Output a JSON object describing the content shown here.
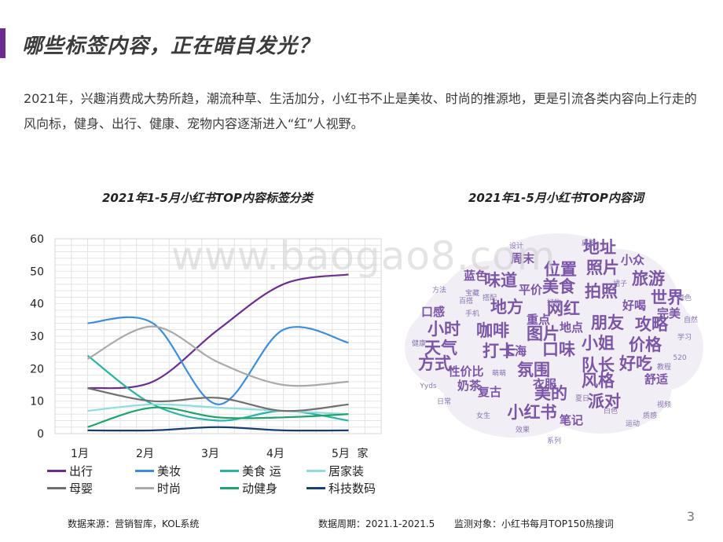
{
  "page": {
    "title": "哪些标签内容，正在暗自发光？",
    "description": "2021年，兴趣消费成大势所趋，潮流种草、生活加分，小红书不止是美妆、时尚的推源地，更是引流各类内容向上行走的风向标，健身、出行、健康、宠物内容逐渐进入“红”人视野。",
    "accent_color": "#6b2d8f",
    "watermark": "www.baogao8.com",
    "page_number": "3"
  },
  "footer": {
    "source": "数据来源：营销智库，KOL系统",
    "period": "数据周期：2021.1-2021.5",
    "monitor": "监测对象：小红书每月TOP150热搜词"
  },
  "chart_data": [
    {
      "type": "line",
      "title": "2021年1-5月小红书TOP内容标签分类",
      "categories": [
        "1月",
        "2月",
        "3月",
        "4月",
        "5月"
      ],
      "ylim": [
        0,
        60
      ],
      "yticks": [
        0,
        10,
        20,
        30,
        40,
        50,
        60
      ],
      "grid": true,
      "legend_position": "bottom",
      "series": [
        {
          "name": "出行",
          "color": "#6b2d8f",
          "values": [
            14,
            16,
            32,
            46,
            49
          ]
        },
        {
          "name": "美妆",
          "color": "#3a8ee0",
          "values": [
            34,
            34,
            9,
            32,
            28
          ]
        },
        {
          "name": "美食",
          "color": "#2bb3a3",
          "values": [
            24,
            9,
            4,
            7,
            4
          ]
        },
        {
          "name": "居家装",
          "color": "#8fdcdc",
          "values": [
            7,
            9,
            8,
            7,
            6
          ]
        },
        {
          "name": "母婴",
          "color": "#6f6f6f",
          "values": [
            14,
            10,
            11,
            7,
            9
          ]
        },
        {
          "name": "时尚",
          "color": "#a9a9a9",
          "values": [
            23,
            33,
            22,
            15,
            16
          ]
        },
        {
          "name": "运动健身",
          "color": "#1fa26b",
          "values": [
            2,
            8,
            5,
            5,
            6
          ]
        },
        {
          "name": "科技数码",
          "color": "#163f73",
          "values": [
            1,
            1,
            2,
            1,
            1
          ]
        }
      ],
      "xtick_extra": "家",
      "legend_rows": [
        [
          {
            "label": "出行",
            "color": "#6b2d8f"
          },
          {
            "label": "美妆",
            "color": "#3a8ee0"
          },
          {
            "label": "美食 运",
            "color": "#2bb3a3"
          },
          {
            "label": "居家装",
            "color": "#8fdcdc"
          }
        ],
        [
          {
            "label": "母婴",
            "color": "#6f6f6f"
          },
          {
            "label": "时尚",
            "color": "#a9a9a9"
          },
          {
            "label": "动健身",
            "color": "#1fa26b"
          },
          {
            "label": "科技数码",
            "color": "#163f73"
          }
        ]
      ]
    },
    {
      "type": "wordcloud",
      "title": "2021年1-5月小红书TOP内容词",
      "cloud_color": "#7b56a8",
      "words": [
        {
          "text": "地址",
          "weight": 3
        },
        {
          "text": "周末",
          "weight": 2
        },
        {
          "text": "位置",
          "weight": 3
        },
        {
          "text": "照片",
          "weight": 3
        },
        {
          "text": "味道",
          "weight": 3
        },
        {
          "text": "美食",
          "weight": 3
        },
        {
          "text": "旅游",
          "weight": 3
        },
        {
          "text": "宝藏",
          "weight": 1
        },
        {
          "text": "拍照",
          "weight": 3
        },
        {
          "text": "世界",
          "weight": 3
        },
        {
          "text": "地方",
          "weight": 3
        },
        {
          "text": "网红",
          "weight": 3
        },
        {
          "text": "好喝",
          "weight": 2
        },
        {
          "text": "地点",
          "weight": 2
        },
        {
          "text": "朋友",
          "weight": 3
        },
        {
          "text": "攻略",
          "weight": 3
        },
        {
          "text": "小时",
          "weight": 3
        },
        {
          "text": "咖啡",
          "weight": 3
        },
        {
          "text": "图片",
          "weight": 3
        },
        {
          "text": "小姐",
          "weight": 3
        },
        {
          "text": "价格",
          "weight": 3
        },
        {
          "text": "天气",
          "weight": 3
        },
        {
          "text": "打卡",
          "weight": 3
        },
        {
          "text": "口味",
          "weight": 3
        },
        {
          "text": "性价比",
          "weight": 2
        },
        {
          "text": "氛围",
          "weight": 3
        },
        {
          "text": "队长",
          "weight": 3
        },
        {
          "text": "好吃",
          "weight": 3
        },
        {
          "text": "舒适",
          "weight": 2
        },
        {
          "text": "复古",
          "weight": 2
        },
        {
          "text": "美的",
          "weight": 3
        },
        {
          "text": "风格",
          "weight": 3
        },
        {
          "text": "派对",
          "weight": 3
        },
        {
          "text": "笔记",
          "weight": 2
        },
        {
          "text": "小红书",
          "weight": 3
        },
        {
          "text": "方式",
          "weight": 3
        },
        {
          "text": "奶茶",
          "weight": 2
        },
        {
          "text": "衣服",
          "weight": 2
        },
        {
          "text": "口感",
          "weight": 2
        },
        {
          "text": "平价",
          "weight": 2
        },
        {
          "text": "蓝色",
          "weight": 2
        },
        {
          "text": "上海",
          "weight": 2
        },
        {
          "text": "重点",
          "weight": 2
        },
        {
          "text": "小众",
          "weight": 2
        },
        {
          "text": "完美",
          "weight": 2
        },
        {
          "text": "颜色",
          "weight": 1
        },
        {
          "text": "方法",
          "weight": 1
        },
        {
          "text": "学习",
          "weight": 1
        },
        {
          "text": "视频",
          "weight": 1
        },
        {
          "text": "运动",
          "weight": 1
        },
        {
          "text": "效果",
          "weight": 1
        },
        {
          "text": "日常",
          "weight": 1
        },
        {
          "text": "皮肤",
          "weight": 1
        },
        {
          "text": "夏日",
          "weight": 1
        },
        {
          "text": "自然",
          "weight": 1
        },
        {
          "text": "设计",
          "weight": 1
        },
        {
          "text": "女生",
          "weight": 1
        },
        {
          "text": "手机",
          "weight": 1
        },
        {
          "text": "教程",
          "weight": 1
        },
        {
          "text": "百搭",
          "weight": 1
        },
        {
          "text": "搭配",
          "weight": 1
        },
        {
          "text": "好物",
          "weight": 1
        },
        {
          "text": "白色",
          "weight": 1
        },
        {
          "text": "萌萌",
          "weight": 1
        },
        {
          "text": "裙子",
          "weight": 1
        },
        {
          "text": "Yyds",
          "weight": 1
        },
        {
          "text": "520",
          "weight": 1
        },
        {
          "text": "健康",
          "weight": 1
        },
        {
          "text": "系列",
          "weight": 1
        },
        {
          "text": "质感",
          "weight": 1
        }
      ]
    }
  ]
}
